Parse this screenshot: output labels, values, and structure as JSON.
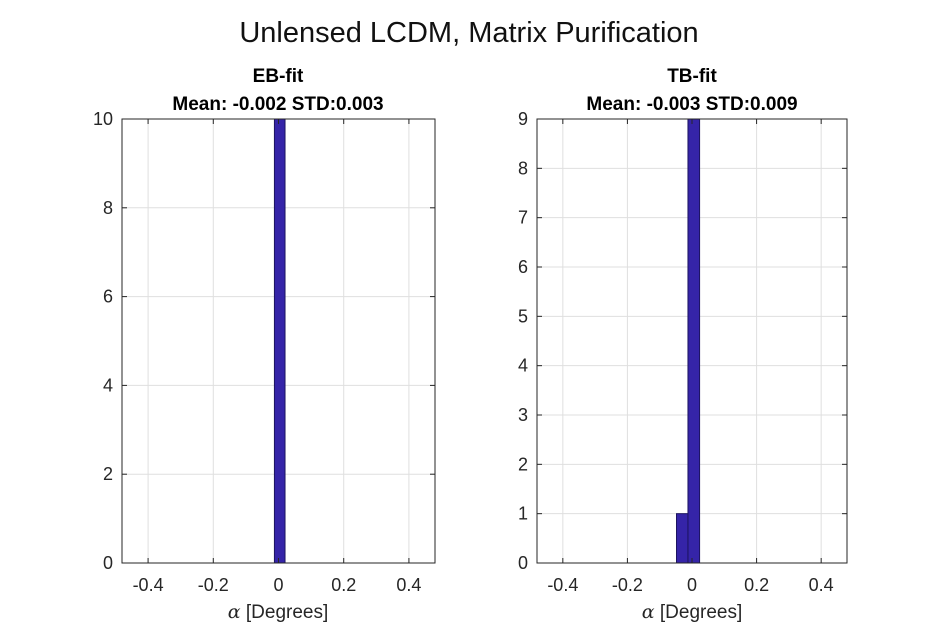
{
  "figure": {
    "title": "Unlensed LCDM, Matrix Purification"
  },
  "chart_data": [
    {
      "type": "bar",
      "title_line1": "EB-fit",
      "title_line2": "Mean: -0.002 STD:0.003",
      "xlabel_symbol": "α",
      "xlabel_text": " [Degrees]",
      "ylabel": "",
      "xlim": [
        -0.48,
        0.48
      ],
      "ylim": [
        0,
        10
      ],
      "xticks": [
        -0.4,
        -0.2,
        0,
        0.2,
        0.4
      ],
      "xtick_labels": [
        "-0.4",
        "-0.2",
        "0",
        "0.2",
        "0.4"
      ],
      "yticks": [
        0,
        2,
        4,
        6,
        8,
        10
      ],
      "ytick_labels": [
        "0",
        "2",
        "4",
        "6",
        "8",
        "10"
      ],
      "grid": true,
      "bins": [
        {
          "x0": -0.0125,
          "x1": 0.02,
          "count": 10
        }
      ]
    },
    {
      "type": "bar",
      "title_line1": "TB-fit",
      "title_line2": "Mean: -0.003 STD:0.009",
      "xlabel_symbol": "α",
      "xlabel_text": " [Degrees]",
      "ylabel": "",
      "xlim": [
        -0.48,
        0.48
      ],
      "ylim": [
        0,
        9
      ],
      "xticks": [
        -0.4,
        -0.2,
        0,
        0.2,
        0.4
      ],
      "xtick_labels": [
        "-0.4",
        "-0.2",
        "0",
        "0.2",
        "0.4"
      ],
      "yticks": [
        0,
        1,
        2,
        3,
        4,
        5,
        6,
        7,
        8,
        9
      ],
      "ytick_labels": [
        "0",
        "1",
        "2",
        "3",
        "4",
        "5",
        "6",
        "7",
        "8",
        "9"
      ],
      "grid": true,
      "bins": [
        {
          "x0": -0.048,
          "x1": -0.0125,
          "count": 1
        },
        {
          "x0": -0.0125,
          "x1": 0.0235,
          "count": 9
        }
      ]
    }
  ],
  "colors": {
    "bar_fill": "#3524a8",
    "bar_edge": "#1c1460",
    "grid": "#dfdfdf",
    "axis": "#262626"
  }
}
